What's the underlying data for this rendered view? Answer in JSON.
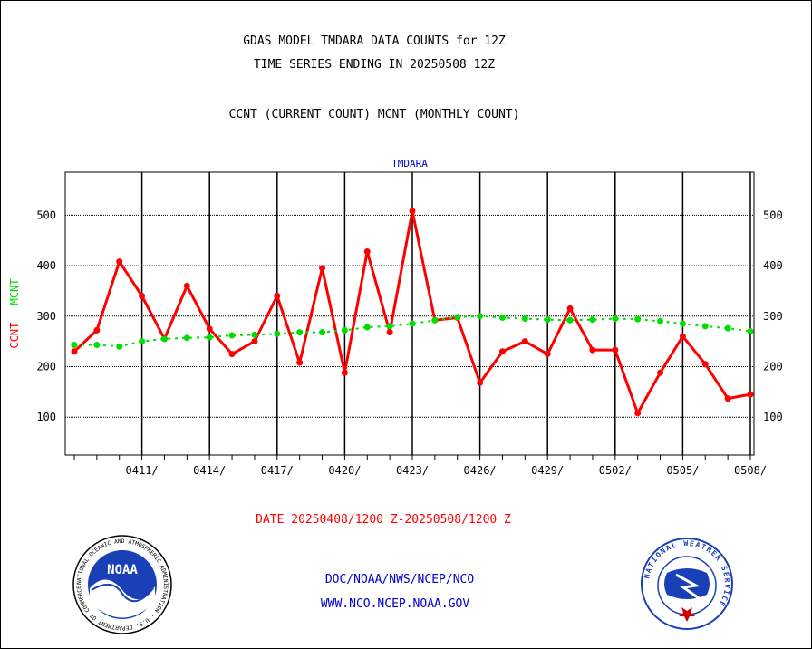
{
  "header": {
    "line1": "GDAS MODEL TMDARA DATA COUNTS for 12Z",
    "line2": "TIME SERIES ENDING IN 20250508 12Z",
    "line3": "CCNT (CURRENT COUNT) MCNT (MONTHLY COUNT)"
  },
  "footer": {
    "date_range": "DATE 20250408/1200 Z-20250508/1200 Z",
    "org_path": "DOC/NOAA/NWS/NCEP/NCO",
    "website": "WWW.NCO.NCEP.NOAA.GOV"
  },
  "logos": {
    "noaa_text": "NOAA",
    "noaa_ring": "NATIONAL OCEANIC AND ATMOSPHERIC ADMINISTRATION · U.S. DEPARTMENT OF COMMERCE ·",
    "nws_ring": "NATIONAL WEATHER SERVICE"
  },
  "colors": {
    "ccnt": "#ff0000",
    "mcnt": "#00dd00",
    "subtitle": "#0000cc"
  },
  "chart_data": {
    "type": "line",
    "title": "TMDARA",
    "ylabel_parts": [
      "CCNT",
      "MCNT"
    ],
    "xlim": [
      0,
      30
    ],
    "ylim": [
      25,
      585
    ],
    "yticks": [
      100,
      200,
      300,
      400,
      500
    ],
    "grid": true,
    "x_tick_labels": [
      {
        "x": 3,
        "label": "0411/"
      },
      {
        "x": 6,
        "label": "0414/"
      },
      {
        "x": 9,
        "label": "0417/"
      },
      {
        "x": 12,
        "label": "0420/"
      },
      {
        "x": 15,
        "label": "0423/"
      },
      {
        "x": 18,
        "label": "0426/"
      },
      {
        "x": 21,
        "label": "0429/"
      },
      {
        "x": 24,
        "label": "0502/"
      },
      {
        "x": 27,
        "label": "0505/"
      },
      {
        "x": 30,
        "label": "0508/"
      }
    ],
    "series": [
      {
        "name": "CCNT",
        "color": "#ff0000",
        "x": [
          0,
          1,
          2,
          3,
          4,
          5,
          6,
          7,
          8,
          9,
          10,
          11,
          12,
          13,
          14,
          15,
          16,
          17,
          18,
          19,
          20,
          21,
          22,
          23,
          24,
          25,
          26,
          27,
          28,
          29,
          30
        ],
        "values": [
          230,
          272,
          408,
          340,
          255,
          360,
          275,
          225,
          250,
          340,
          208,
          395,
          188,
          428,
          268,
          508,
          292,
          297,
          168,
          230,
          250,
          225,
          315,
          233,
          233,
          108,
          188,
          260,
          205,
          137,
          145
        ]
      },
      {
        "name": "MCNT",
        "color": "#00dd00",
        "x": [
          0,
          1,
          2,
          3,
          4,
          5,
          6,
          7,
          8,
          9,
          10,
          11,
          12,
          13,
          14,
          15,
          16,
          17,
          18,
          19,
          20,
          21,
          22,
          23,
          24,
          25,
          26,
          27,
          28,
          29,
          30
        ],
        "values": [
          243,
          243,
          240,
          250,
          255,
          257,
          258,
          262,
          263,
          265,
          268,
          268,
          272,
          278,
          280,
          285,
          292,
          298,
          300,
          297,
          295,
          293,
          292,
          293,
          295,
          294,
          290,
          285,
          280,
          276,
          270
        ]
      }
    ]
  }
}
